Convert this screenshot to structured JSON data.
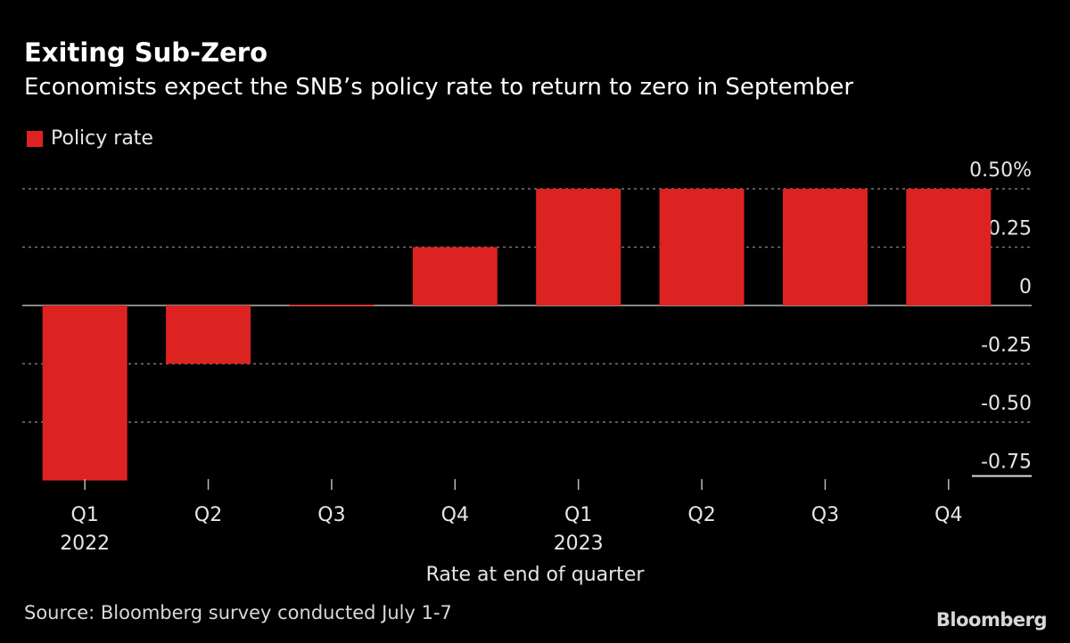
{
  "chart_data": {
    "type": "bar",
    "title": "Exiting Sub-Zero",
    "subtitle": "Economists expect the SNB’s policy rate to return to zero in September",
    "categories": [
      "Q1 2022",
      "Q2 2022",
      "Q3 2022",
      "Q4 2022",
      "Q1 2023",
      "Q2 2023",
      "Q3 2023",
      "Q4 2023"
    ],
    "tick_labels": [
      {
        "quarter": "Q1",
        "year": "2022"
      },
      {
        "quarter": "Q2",
        "year": ""
      },
      {
        "quarter": "Q3",
        "year": ""
      },
      {
        "quarter": "Q4",
        "year": ""
      },
      {
        "quarter": "Q1",
        "year": "2023"
      },
      {
        "quarter": "Q2",
        "year": ""
      },
      {
        "quarter": "Q3",
        "year": ""
      },
      {
        "quarter": "Q4",
        "year": ""
      }
    ],
    "series": [
      {
        "name": "Policy rate",
        "values": [
          -0.75,
          -0.25,
          0,
          0.25,
          0.5,
          0.5,
          0.5,
          0.5
        ],
        "color": "#dd2222"
      }
    ],
    "xlabel": "Rate at end of quarter",
    "ylabel": "",
    "ylim": [
      -0.75,
      0.5
    ],
    "yticks": [
      0.5,
      0.25,
      0,
      -0.25,
      -0.5,
      -0.75
    ],
    "ytick_labels": [
      "0.50%",
      "0.25",
      "0",
      "-0.25",
      "-0.50",
      "-0.75"
    ],
    "grid": true,
    "legend_position": "top-left"
  },
  "source": "Source: Bloomberg survey conducted July 1-7",
  "logo": "Bloomberg"
}
